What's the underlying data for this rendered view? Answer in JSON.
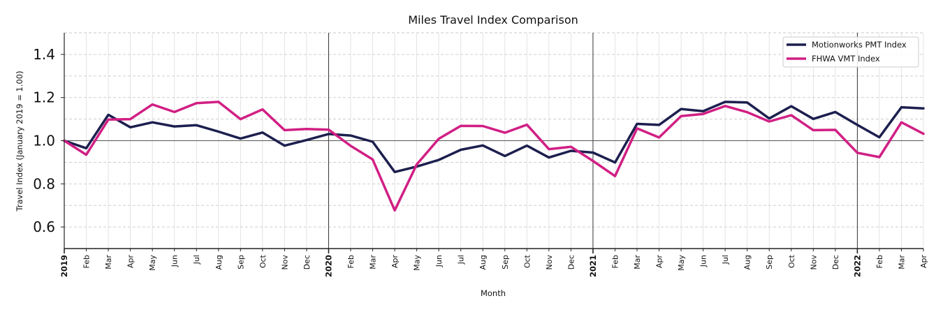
{
  "chart_data": {
    "type": "line",
    "title": "Miles Travel Index Comparison",
    "xlabel": "Month",
    "ylabel": "Travel Index (January 2019 = 1.00)",
    "ylim": [
      0.5,
      1.5
    ],
    "yticks": [
      0.6,
      0.8,
      1.0,
      1.2,
      1.4
    ],
    "ytick_labels": [
      "0.6",
      "0.8",
      "1.0",
      "1.2",
      "1.4"
    ],
    "minor_grid_y": [
      0.5,
      0.7,
      0.9,
      1.1,
      1.3,
      1.5
    ],
    "grid": true,
    "reference_line_y": 1.0,
    "year_separators": [
      "2020",
      "2021",
      "2022"
    ],
    "legend_position": "upper right",
    "categories": [
      "2019",
      "Feb",
      "Mar",
      "Apr",
      "May",
      "Jun",
      "Jul",
      "Aug",
      "Sep",
      "Oct",
      "Nov",
      "Dec",
      "2020",
      "Feb",
      "Mar",
      "Apr",
      "May",
      "Jun",
      "Jul",
      "Aug",
      "Sep",
      "Oct",
      "Nov",
      "Dec",
      "2021",
      "Feb",
      "Mar",
      "Apr",
      "May",
      "Jun",
      "Jul",
      "Aug",
      "Sep",
      "Oct",
      "Nov",
      "Dec",
      "2022",
      "Feb",
      "Mar",
      "Apr"
    ],
    "year_ticks": [
      "2019",
      "2020",
      "2021",
      "2022"
    ],
    "series": [
      {
        "name": "Motionworks PMT Index",
        "color": "#1c1f4e",
        "values": [
          1.0,
          0.965,
          1.12,
          1.062,
          1.085,
          1.066,
          1.072,
          1.042,
          1.01,
          1.038,
          0.977,
          1.003,
          1.031,
          1.024,
          0.995,
          0.855,
          0.88,
          0.911,
          0.958,
          0.978,
          0.929,
          0.977,
          0.922,
          0.953,
          0.945,
          0.899,
          1.078,
          1.073,
          1.147,
          1.137,
          1.18,
          1.177,
          1.103,
          1.16,
          1.101,
          1.133,
          1.073,
          1.016,
          1.155,
          1.15
        ]
      },
      {
        "name": "FHWA VMT Index",
        "color": "#d11f84",
        "values": [
          1.0,
          0.935,
          1.098,
          1.1,
          1.168,
          1.133,
          1.174,
          1.18,
          1.1,
          1.145,
          1.049,
          1.054,
          1.051,
          0.976,
          0.913,
          0.677,
          0.89,
          1.009,
          1.069,
          1.068,
          1.037,
          1.074,
          0.961,
          0.972,
          0.906,
          0.836,
          1.057,
          1.015,
          1.114,
          1.124,
          1.161,
          1.132,
          1.089,
          1.118,
          1.049,
          1.05,
          0.944,
          0.924,
          1.085,
          1.032
        ]
      }
    ]
  },
  "colors": {
    "grid": "#c8c8c8",
    "axis": "#222222",
    "reference_line": "#555555",
    "year_line": "#333333"
  }
}
